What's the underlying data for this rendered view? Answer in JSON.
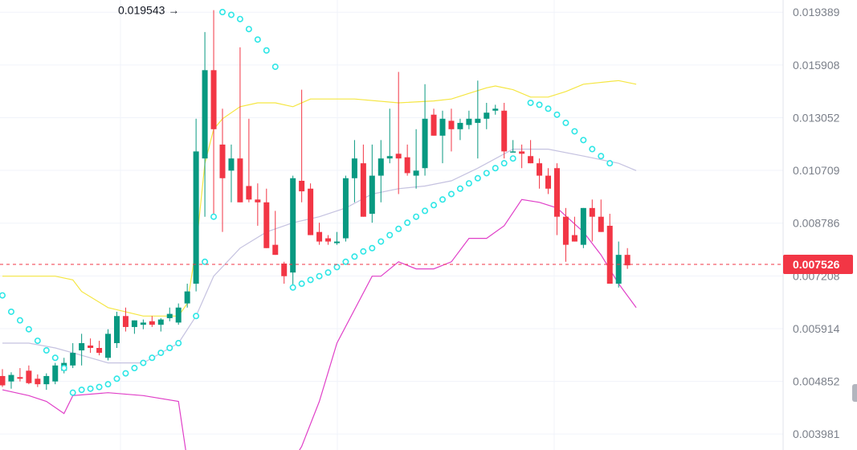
{
  "chart_data": {
    "type": "candlestick",
    "y_axis": {
      "min": 0.00375,
      "max": 0.0203,
      "tick_labels": [
        "0.019389",
        "0.015908",
        "0.013052",
        "0.010709",
        "0.008786",
        "0.007208",
        "0.005914",
        "0.004852",
        "0.003981"
      ],
      "tick_values": [
        0.019389,
        0.015908,
        0.013052,
        0.010709,
        0.008786,
        0.007208,
        0.005914,
        0.004852,
        0.003981
      ],
      "scale": "log"
    },
    "current_price": {
      "label": "0.007526",
      "value": 0.007526,
      "color": "#f23645"
    },
    "high_marker": {
      "label": "0.019543",
      "value": 0.019543,
      "arrow": "→"
    },
    "colors": {
      "up": "#089981",
      "down": "#f23645",
      "bb_upper": "#f5e642",
      "bb_middle": "#c5c2e0",
      "bb_lower": "#e040c8",
      "sar": "#2ee6e6",
      "grid": "#f0f3fa",
      "axis_text": "#7a7f89"
    },
    "candles": [
      [
        0.00495,
        0.00508,
        0.00475,
        0.00478
      ],
      [
        0.00485,
        0.00502,
        0.00472,
        0.00497
      ],
      [
        0.00493,
        0.0051,
        0.00485,
        0.0049
      ],
      [
        0.00505,
        0.00515,
        0.0048,
        0.00482
      ],
      [
        0.0049,
        0.00498,
        0.00475,
        0.0048
      ],
      [
        0.0048,
        0.005,
        0.0047,
        0.00495
      ],
      [
        0.00485,
        0.0052,
        0.0048,
        0.00515
      ],
      [
        0.00505,
        0.0053,
        0.005,
        0.0052
      ],
      [
        0.00515,
        0.0056,
        0.0051,
        0.0054
      ],
      [
        0.00545,
        0.0058,
        0.00515,
        0.0056
      ],
      [
        0.00555,
        0.0057,
        0.0054,
        0.0055
      ],
      [
        0.0055,
        0.00565,
        0.00535,
        0.0054
      ],
      [
        0.0053,
        0.0059,
        0.00525,
        0.0058
      ],
      [
        0.0056,
        0.0063,
        0.0055,
        0.0062
      ],
      [
        0.0062,
        0.0064,
        0.00585,
        0.00595
      ],
      [
        0.00595,
        0.0061,
        0.0058,
        0.0061
      ],
      [
        0.006,
        0.00612,
        0.0059,
        0.00605
      ],
      [
        0.00608,
        0.0062,
        0.00595,
        0.006
      ],
      [
        0.006,
        0.00615,
        0.00585,
        0.00612
      ],
      [
        0.00615,
        0.0064,
        0.00608,
        0.00625
      ],
      [
        0.00605,
        0.0065,
        0.006,
        0.0064
      ],
      [
        0.0065,
        0.007,
        0.0064,
        0.0068
      ],
      [
        0.007,
        0.013,
        0.0068,
        0.0115
      ],
      [
        0.0112,
        0.018,
        0.009,
        0.0156
      ],
      [
        0.0156,
        0.01954,
        0.009,
        0.0125
      ],
      [
        0.0118,
        0.0135,
        0.0085,
        0.0104
      ],
      [
        0.0107,
        0.0118,
        0.0095,
        0.0112
      ],
      [
        0.0112,
        0.017,
        0.0095,
        0.0095
      ],
      [
        0.0101,
        0.013,
        0.0095,
        0.0096
      ],
      [
        0.0096,
        0.0102,
        0.0087,
        0.0095
      ],
      [
        0.0095,
        0.01,
        0.008,
        0.008
      ],
      [
        0.0081,
        0.0092,
        0.0078,
        0.0078
      ],
      [
        0.00755,
        0.0076,
        0.007,
        0.0072
      ],
      [
        0.0073,
        0.0105,
        0.0069,
        0.0104
      ],
      [
        0.0103,
        0.0145,
        0.0095,
        0.0099
      ],
      [
        0.01,
        0.0102,
        0.0084,
        0.0084
      ],
      [
        0.0085,
        0.0088,
        0.0081,
        0.0082
      ],
      [
        0.0083,
        0.0084,
        0.0081,
        0.0082
      ],
      [
        0.00815,
        0.0085,
        0.0081,
        0.0082
      ],
      [
        0.0083,
        0.0105,
        0.0082,
        0.0104
      ],
      [
        0.0104,
        0.012,
        0.0095,
        0.0112
      ],
      [
        0.011,
        0.0118,
        0.009,
        0.009
      ],
      [
        0.0091,
        0.0118,
        0.0088,
        0.0105
      ],
      [
        0.0105,
        0.012,
        0.0095,
        0.0112
      ],
      [
        0.0112,
        0.0135,
        0.011,
        0.0113
      ],
      [
        0.0114,
        0.0155,
        0.0098,
        0.0112
      ],
      [
        0.01125,
        0.0118,
        0.0105,
        0.0106
      ],
      [
        0.0105,
        0.0125,
        0.01,
        0.0107
      ],
      [
        0.0108,
        0.0148,
        0.0105,
        0.013
      ],
      [
        0.0132,
        0.0135,
        0.0122,
        0.0122
      ],
      [
        0.0122,
        0.0134,
        0.011,
        0.013
      ],
      [
        0.0129,
        0.0135,
        0.0115,
        0.0125
      ],
      [
        0.0125,
        0.013,
        0.012,
        0.0128
      ],
      [
        0.0127,
        0.0134,
        0.0125,
        0.013
      ],
      [
        0.0128,
        0.015,
        0.0112,
        0.013
      ],
      [
        0.013,
        0.0138,
        0.0125,
        0.0133
      ],
      [
        0.0134,
        0.0137,
        0.0132,
        0.0135
      ],
      [
        0.0134,
        0.0138,
        0.0112,
        0.0115
      ],
      [
        0.0115,
        0.012,
        0.0115,
        0.0115
      ],
      [
        0.0115,
        0.0118,
        0.0108,
        0.0114
      ],
      [
        0.0113,
        0.012,
        0.011,
        0.011
      ],
      [
        0.011,
        0.0112,
        0.01,
        0.0105
      ],
      [
        0.0105,
        0.0108,
        0.0098,
        0.01
      ],
      [
        0.0108,
        0.011,
        0.0084,
        0.009
      ],
      [
        0.009,
        0.0093,
        0.0076,
        0.0081
      ],
      [
        0.0084,
        0.009,
        0.0082,
        0.0082
      ],
      [
        0.0081,
        0.0093,
        0.008,
        0.0093
      ],
      [
        0.0093,
        0.0096,
        0.0082,
        0.009
      ],
      [
        0.009,
        0.0096,
        0.0085,
        0.0085
      ],
      [
        0.0087,
        0.0091,
        0.007,
        0.007
      ],
      [
        0.007,
        0.0082,
        0.0069,
        0.0078
      ],
      [
        0.0078,
        0.008,
        0.0074,
        0.0075
      ]
    ],
    "bb_upper": [
      [
        0,
        0.0072
      ],
      [
        3,
        0.0072
      ],
      [
        6,
        0.0072
      ],
      [
        8,
        0.0071
      ],
      [
        9,
        0.0068
      ],
      [
        12,
        0.0064
      ],
      [
        16,
        0.0062
      ],
      [
        20,
        0.0062
      ],
      [
        21,
        0.0065
      ],
      [
        22,
        0.008
      ],
      [
        23,
        0.011
      ],
      [
        24,
        0.0125
      ],
      [
        25,
        0.013
      ],
      [
        27,
        0.0136
      ],
      [
        29,
        0.0138
      ],
      [
        31,
        0.0138
      ],
      [
        33,
        0.0136
      ],
      [
        35,
        0.014
      ],
      [
        40,
        0.014
      ],
      [
        45,
        0.0138
      ],
      [
        49,
        0.0139
      ],
      [
        51,
        0.014
      ],
      [
        53,
        0.0143
      ],
      [
        55,
        0.0146
      ],
      [
        56,
        0.0147
      ],
      [
        58,
        0.0145
      ],
      [
        60,
        0.0141
      ],
      [
        62,
        0.0141
      ],
      [
        64,
        0.0144
      ],
      [
        66,
        0.0148
      ],
      [
        70,
        0.015
      ],
      [
        72,
        0.0148
      ]
    ],
    "bb_middle": [
      [
        0,
        0.0056
      ],
      [
        3,
        0.0056
      ],
      [
        6,
        0.0055
      ],
      [
        8,
        0.0054
      ],
      [
        10,
        0.0053
      ],
      [
        12,
        0.0052
      ],
      [
        16,
        0.0052
      ],
      [
        20,
        0.0056
      ],
      [
        22,
        0.0062
      ],
      [
        24,
        0.0072
      ],
      [
        27,
        0.008
      ],
      [
        30,
        0.0085
      ],
      [
        33,
        0.0088
      ],
      [
        36,
        0.009
      ],
      [
        39,
        0.0093
      ],
      [
        42,
        0.0098
      ],
      [
        45,
        0.01
      ],
      [
        48,
        0.0101
      ],
      [
        51,
        0.0103
      ],
      [
        54,
        0.0108
      ],
      [
        58,
        0.0116
      ],
      [
        62,
        0.0116
      ],
      [
        66,
        0.0113
      ],
      [
        70,
        0.011
      ],
      [
        72,
        0.0107
      ]
    ],
    "bb_lower": [
      [
        0,
        0.0047
      ],
      [
        3,
        0.0046
      ],
      [
        5,
        0.0045
      ],
      [
        7,
        0.0043
      ],
      [
        8,
        0.0046
      ],
      [
        12,
        0.00465
      ],
      [
        16,
        0.0046
      ],
      [
        20,
        0.0045
      ],
      [
        21,
        0.0036
      ],
      [
        33,
        0.0036
      ],
      [
        34,
        0.0038
      ],
      [
        36,
        0.0045
      ],
      [
        38,
        0.0056
      ],
      [
        42,
        0.0072
      ],
      [
        43,
        0.0072
      ],
      [
        45,
        0.0076
      ],
      [
        47,
        0.0074
      ],
      [
        49,
        0.0074
      ],
      [
        51,
        0.0076
      ],
      [
        53,
        0.0083
      ],
      [
        55,
        0.0083
      ],
      [
        57,
        0.0087
      ],
      [
        59,
        0.0096
      ],
      [
        61,
        0.0095
      ],
      [
        63,
        0.0093
      ],
      [
        66,
        0.0085
      ],
      [
        68,
        0.0078
      ],
      [
        70,
        0.007
      ],
      [
        72,
        0.0064
      ]
    ],
    "sar": [
      [
        0,
        0.0067
      ],
      [
        1,
        0.0063
      ],
      [
        2,
        0.0061
      ],
      [
        3,
        0.0059
      ],
      [
        4,
        0.00565
      ],
      [
        5,
        0.00545
      ],
      [
        6,
        0.0053
      ],
      [
        7,
        0.0051
      ],
      [
        8,
        0.00465
      ],
      [
        9,
        0.0047
      ],
      [
        10,
        0.00472
      ],
      [
        11,
        0.00475
      ],
      [
        12,
        0.0048
      ],
      [
        13,
        0.0049
      ],
      [
        14,
        0.005
      ],
      [
        15,
        0.0051
      ],
      [
        16,
        0.0052
      ],
      [
        17,
        0.0053
      ],
      [
        18,
        0.0054
      ],
      [
        19,
        0.0055
      ],
      [
        20,
        0.0056
      ],
      [
        22,
        0.0062
      ],
      [
        23,
        0.0076
      ],
      [
        24,
        0.009
      ],
      [
        25,
        0.0194
      ],
      [
        26,
        0.0192
      ],
      [
        27,
        0.0189
      ],
      [
        28,
        0.0182
      ],
      [
        29,
        0.0175
      ],
      [
        30,
        0.0168
      ],
      [
        31,
        0.0158
      ],
      [
        33,
        0.0069
      ],
      [
        34,
        0.007
      ],
      [
        35,
        0.0071
      ],
      [
        36,
        0.0072
      ],
      [
        37,
        0.0073
      ],
      [
        38,
        0.00745
      ],
      [
        39,
        0.0076
      ],
      [
        40,
        0.00775
      ],
      [
        41,
        0.0079
      ],
      [
        42,
        0.008
      ],
      [
        43,
        0.0082
      ],
      [
        44,
        0.0084
      ],
      [
        45,
        0.0086
      ],
      [
        46,
        0.0088
      ],
      [
        47,
        0.009
      ],
      [
        48,
        0.0092
      ],
      [
        49,
        0.0094
      ],
      [
        50,
        0.0096
      ],
      [
        51,
        0.0098
      ],
      [
        52,
        0.01
      ],
      [
        53,
        0.0102
      ],
      [
        54,
        0.0104
      ],
      [
        55,
        0.0106
      ],
      [
        56,
        0.0108
      ],
      [
        57,
        0.011
      ],
      [
        58,
        0.0112
      ],
      [
        60,
        0.0138
      ],
      [
        61,
        0.0137
      ],
      [
        62,
        0.0135
      ],
      [
        63,
        0.0132
      ],
      [
        64,
        0.0128
      ],
      [
        65,
        0.0124
      ],
      [
        66,
        0.012
      ],
      [
        67,
        0.0116
      ],
      [
        68,
        0.0113
      ],
      [
        69,
        0.011
      ]
    ]
  }
}
